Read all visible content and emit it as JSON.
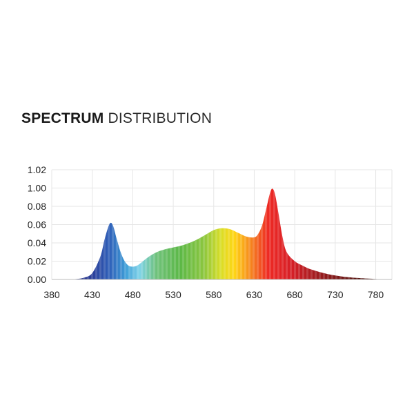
{
  "title": {
    "bold": "SPECTRUM",
    "light": "DISTRIBUTION"
  },
  "chart_data": {
    "type": "area",
    "title": "SPECTRUM DISTRIBUTION",
    "xlabel": "",
    "ylabel": "",
    "xlim": [
      380,
      800
    ],
    "ylim": [
      0,
      1.2
    ],
    "grid": true,
    "x_ticks": [
      "380",
      "430",
      "480",
      "530",
      "580",
      "630",
      "680",
      "730",
      "780"
    ],
    "y_ticks": [
      "0.00",
      "0.02",
      "0.04",
      "0.06",
      "0.08",
      "1.00",
      "1.02"
    ],
    "fill": "wavelength-colored spectrum gradient",
    "x": [
      380,
      400,
      410,
      420,
      430,
      440,
      445,
      450,
      453,
      456,
      460,
      465,
      470,
      475,
      480,
      485,
      490,
      500,
      510,
      520,
      530,
      540,
      550,
      560,
      570,
      580,
      590,
      600,
      610,
      620,
      630,
      635,
      640,
      645,
      650,
      653,
      656,
      660,
      665,
      670,
      680,
      690,
      700,
      720,
      740,
      760,
      780,
      790
    ],
    "values": [
      0,
      0,
      0.005,
      0.02,
      0.07,
      0.25,
      0.43,
      0.58,
      0.62,
      0.58,
      0.45,
      0.3,
      0.2,
      0.15,
      0.14,
      0.15,
      0.18,
      0.25,
      0.3,
      0.33,
      0.35,
      0.37,
      0.4,
      0.44,
      0.49,
      0.54,
      0.56,
      0.55,
      0.51,
      0.47,
      0.46,
      0.5,
      0.6,
      0.78,
      0.96,
      0.99,
      0.92,
      0.72,
      0.46,
      0.3,
      0.2,
      0.15,
      0.11,
      0.06,
      0.03,
      0.015,
      0.005,
      0
    ]
  }
}
